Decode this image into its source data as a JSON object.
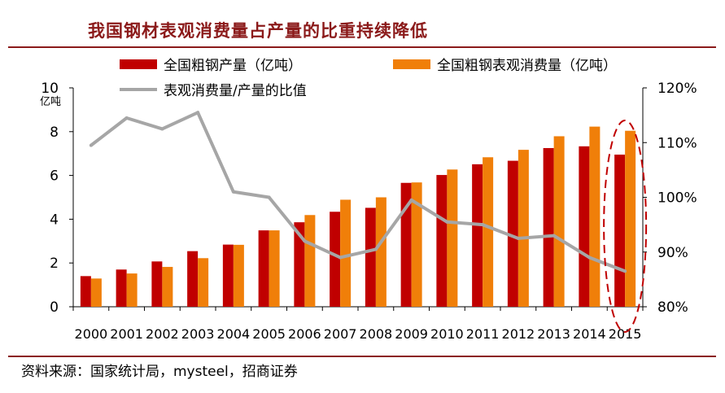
{
  "title": "我国钢材表观消费量占产量的比重持续降低",
  "source": "资料来源：国家统计局，mysteel，招商证券",
  "colors": {
    "production": "#c00000",
    "consumption": "#f07f09",
    "ratio": "#a6a6a6",
    "highlight": "#c00000",
    "title": "#8b1a1a"
  },
  "chart_data": {
    "type": "bar",
    "categories": [
      "2000",
      "2001",
      "2002",
      "2003",
      "2004",
      "2005",
      "2006",
      "2007",
      "2008",
      "2009",
      "2010",
      "2011",
      "2012",
      "2013",
      "2014",
      "2015"
    ],
    "series": [
      {
        "name": "全国粗钢产量（亿吨）",
        "type": "bar",
        "axis": "left",
        "values": [
          1.29,
          1.52,
          1.82,
          2.22,
          2.83,
          3.49,
          4.19,
          4.89,
          5.0,
          5.68,
          6.27,
          6.83,
          7.17,
          7.79,
          8.23,
          8.04
        ]
      },
      {
        "name": "全国粗钢表观消费量（亿吨）",
        "type": "bar",
        "axis": "left",
        "values": [
          1.4,
          1.7,
          2.07,
          2.54,
          2.84,
          3.49,
          3.86,
          4.34,
          4.52,
          5.66,
          6.02,
          6.51,
          6.67,
          7.25,
          7.33,
          6.95
        ]
      },
      {
        "name": "表观消费量/产量的比值",
        "type": "line",
        "axis": "right",
        "values": [
          109.5,
          114.5,
          112.5,
          115.5,
          101.0,
          100.0,
          92.0,
          89.0,
          90.5,
          99.5,
          95.5,
          95.0,
          92.5,
          93.0,
          89.0,
          86.5
        ]
      }
    ],
    "left_axis": {
      "label": "亿吨",
      "min": 0,
      "max": 10,
      "ticks": [
        "0",
        "2",
        "4",
        "6",
        "8",
        "10"
      ]
    },
    "right_axis": {
      "min": 80,
      "max": 120,
      "ticks": [
        "80%",
        "90%",
        "100%",
        "110%",
        "120%"
      ]
    },
    "highlight": {
      "category": "2015",
      "style": "dashed-ellipse"
    },
    "legend": {
      "placement": "top"
    },
    "grid": false
  }
}
